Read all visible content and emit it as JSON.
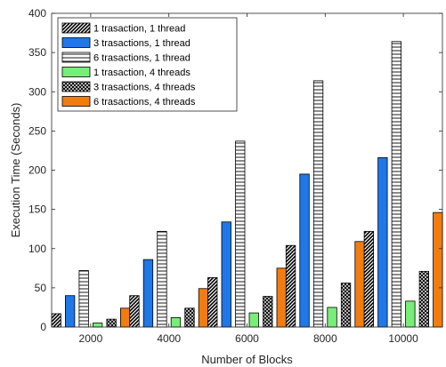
{
  "chart_data": {
    "type": "bar",
    "title": "",
    "xlabel": "Number of Blocks",
    "ylabel": "Execution Time (Seconds)",
    "categories": [
      "2000",
      "4000",
      "6000",
      "8000",
      "10000"
    ],
    "ylim": [
      0,
      400
    ],
    "yticks": [
      0,
      50,
      100,
      150,
      200,
      250,
      300,
      350,
      400
    ],
    "grid": false,
    "legend_position": "top-left",
    "series": [
      {
        "name": "1 trasaction, 1 thread",
        "values": [
          17,
          40,
          63,
          104,
          122
        ],
        "color": "#000000",
        "pattern": "diagonal"
      },
      {
        "name": "3 trasactions, 1 thread",
        "values": [
          40,
          86,
          134,
          195,
          216
        ],
        "color": "#1f77e8",
        "pattern": "solid"
      },
      {
        "name": "6 trasactions, 1 thread",
        "values": [
          72,
          122,
          237,
          314,
          364
        ],
        "color": "#000000",
        "pattern": "horizontal"
      },
      {
        "name": "1 trasaction, 4 threads",
        "values": [
          5,
          12,
          18,
          25,
          33
        ],
        "color": "#77ee77",
        "pattern": "solid"
      },
      {
        "name": "3 trasactions, 4 threads",
        "values": [
          10,
          24,
          39,
          56,
          71
        ],
        "color": "#000000",
        "pattern": "checker"
      },
      {
        "name": "6 trasactions, 4 threads",
        "values": [
          24,
          49,
          75,
          109,
          146
        ],
        "color": "#f27c0f",
        "pattern": "solid"
      }
    ]
  }
}
